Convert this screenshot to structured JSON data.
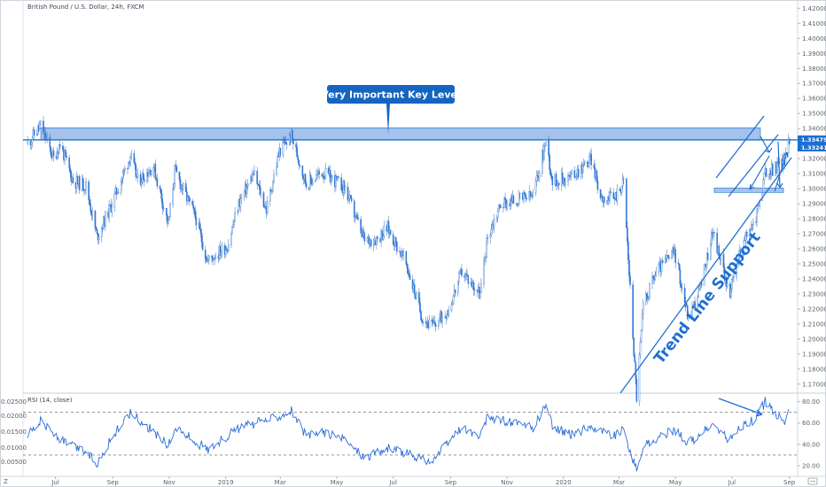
{
  "chart_data": {
    "type": "candlestick",
    "title": "British Pound / U.S. Dollar, 24h, FXCM",
    "price_axis": {
      "ticks": [
        "1.42000",
        "1.41000",
        "1.40000",
        "1.39000",
        "1.38000",
        "1.37000",
        "1.36000",
        "1.35000",
        "1.34000",
        "1.33000",
        "1.32000",
        "1.31000",
        "1.30000",
        "1.29000",
        "1.28000",
        "1.27000",
        "1.26000",
        "1.25000",
        "1.24000",
        "1.23000",
        "1.22000",
        "1.21000",
        "1.20000",
        "1.19000",
        "1.18000",
        "1.17000"
      ],
      "range": [
        1.164,
        1.4255
      ]
    },
    "time_axis": {
      "labels": [
        "Jul",
        "Sep",
        "Nov",
        "2019",
        "Mar",
        "May",
        "Jul",
        "Sep",
        "Nov",
        "2020",
        "Mar",
        "May",
        "Jul",
        "Sep"
      ]
    },
    "price_tags": [
      "1.33479",
      "1.33241"
    ],
    "price_path": [
      [
        "2018-06-01",
        1.33
      ],
      [
        "2018-06-15",
        1.342
      ],
      [
        "2018-06-29",
        1.32
      ],
      [
        "2018-07-06",
        1.33
      ],
      [
        "2018-07-20",
        1.305
      ],
      [
        "2018-08-03",
        1.302
      ],
      [
        "2018-08-15",
        1.268
      ],
      [
        "2018-08-31",
        1.29
      ],
      [
        "2018-09-20",
        1.322
      ],
      [
        "2018-09-28",
        1.305
      ],
      [
        "2018-10-15",
        1.315
      ],
      [
        "2018-10-31",
        1.276
      ],
      [
        "2018-11-07",
        1.312
      ],
      [
        "2018-11-30",
        1.28
      ],
      [
        "2018-12-12",
        1.252
      ],
      [
        "2019-01-03",
        1.262
      ],
      [
        "2019-01-15",
        1.29
      ],
      [
        "2019-01-31",
        1.31
      ],
      [
        "2019-02-14",
        1.286
      ],
      [
        "2019-02-28",
        1.325
      ],
      [
        "2019-03-13",
        1.335
      ],
      [
        "2019-03-29",
        1.303
      ],
      [
        "2019-04-15",
        1.311
      ],
      [
        "2019-04-30",
        1.305
      ],
      [
        "2019-05-10",
        1.3
      ],
      [
        "2019-05-31",
        1.265
      ],
      [
        "2019-06-14",
        1.267
      ],
      [
        "2019-06-25",
        1.274
      ],
      [
        "2019-07-15",
        1.25
      ],
      [
        "2019-08-01",
        1.215
      ],
      [
        "2019-08-12",
        1.208
      ],
      [
        "2019-08-30",
        1.22
      ],
      [
        "2019-09-13",
        1.245
      ],
      [
        "2019-10-03",
        1.23
      ],
      [
        "2019-10-11",
        1.268
      ],
      [
        "2019-10-25",
        1.29
      ],
      [
        "2019-11-29",
        1.295
      ],
      [
        "2019-12-13",
        1.332
      ],
      [
        "2019-12-20",
        1.305
      ],
      [
        "2020-01-09",
        1.308
      ],
      [
        "2020-01-31",
        1.32
      ],
      [
        "2020-02-10",
        1.295
      ],
      [
        "2020-02-24",
        1.293
      ],
      [
        "2020-03-06",
        1.305
      ],
      [
        "2020-03-20",
        1.162
      ],
      [
        "2020-03-27",
        1.222
      ],
      [
        "2020-04-10",
        1.245
      ],
      [
        "2020-04-30",
        1.258
      ],
      [
        "2020-05-15",
        1.214
      ],
      [
        "2020-05-29",
        1.236
      ],
      [
        "2020-06-10",
        1.272
      ],
      [
        "2020-06-29",
        1.23
      ],
      [
        "2020-07-10",
        1.259
      ],
      [
        "2020-07-27",
        1.281
      ],
      [
        "2020-08-06",
        1.31
      ],
      [
        "2020-08-17",
        1.314
      ],
      [
        "2020-08-28",
        1.32
      ],
      [
        "2020-09-01",
        1.334
      ]
    ],
    "rsi": {
      "label": "RSI (14, close)",
      "ticks": [
        "80.00",
        "60.00",
        "40.00",
        "20.00"
      ],
      "levels": [
        70,
        30
      ],
      "range": [
        10,
        88
      ],
      "left_scale_ticks": [
        "0.02500",
        "0.02000",
        "0.01500",
        "0.01000",
        "0.00500"
      ],
      "path": [
        [
          "2018-06-01",
          50
        ],
        [
          "2018-06-15",
          62
        ],
        [
          "2018-07-06",
          44
        ],
        [
          "2018-07-20",
          38
        ],
        [
          "2018-08-03",
          33
        ],
        [
          "2018-08-15",
          22
        ],
        [
          "2018-08-31",
          46
        ],
        [
          "2018-09-20",
          70
        ],
        [
          "2018-10-15",
          52
        ],
        [
          "2018-10-31",
          38
        ],
        [
          "2018-11-07",
          56
        ],
        [
          "2018-12-12",
          35
        ],
        [
          "2019-01-15",
          55
        ],
        [
          "2019-01-31",
          59
        ],
        [
          "2019-02-28",
          67
        ],
        [
          "2019-03-13",
          72
        ],
        [
          "2019-03-29",
          47
        ],
        [
          "2019-04-15",
          52
        ],
        [
          "2019-05-10",
          44
        ],
        [
          "2019-05-31",
          28
        ],
        [
          "2019-06-25",
          36
        ],
        [
          "2019-07-15",
          32
        ],
        [
          "2019-08-01",
          26
        ],
        [
          "2019-08-12",
          24
        ],
        [
          "2019-08-30",
          42
        ],
        [
          "2019-09-13",
          56
        ],
        [
          "2019-10-03",
          46
        ],
        [
          "2019-10-11",
          66
        ],
        [
          "2019-10-25",
          63
        ],
        [
          "2019-11-29",
          55
        ],
        [
          "2019-12-13",
          77
        ],
        [
          "2019-12-20",
          57
        ],
        [
          "2020-01-09",
          49
        ],
        [
          "2020-01-31",
          57
        ],
        [
          "2020-02-24",
          48
        ],
        [
          "2020-03-06",
          53
        ],
        [
          "2020-03-20",
          15
        ],
        [
          "2020-03-27",
          38
        ],
        [
          "2020-04-30",
          54
        ],
        [
          "2020-05-15",
          41
        ],
        [
          "2020-06-10",
          58
        ],
        [
          "2020-06-29",
          44
        ],
        [
          "2020-07-10",
          56
        ],
        [
          "2020-07-27",
          64
        ],
        [
          "2020-08-06",
          80
        ],
        [
          "2020-08-17",
          68
        ],
        [
          "2020-08-28",
          62
        ],
        [
          "2020-09-01",
          70
        ]
      ]
    },
    "annotations": {
      "callout": "Very Important Key Level",
      "trendline_label": "Trend Line Support",
      "resistance_zone": [
        1.3325,
        1.3405
      ],
      "resistance_line": 1.3325,
      "support_zone": [
        1.2975,
        1.3005
      ]
    }
  },
  "ui": {
    "axis_mode": "Z",
    "colors": {
      "accent": "#1e6fd0",
      "zone_fill": "#8fb3e8",
      "candle": "#2f77d6",
      "callout_bg": "#1565c0",
      "rsi_line": "#2a6dd6",
      "level_line": "#555555"
    }
  }
}
